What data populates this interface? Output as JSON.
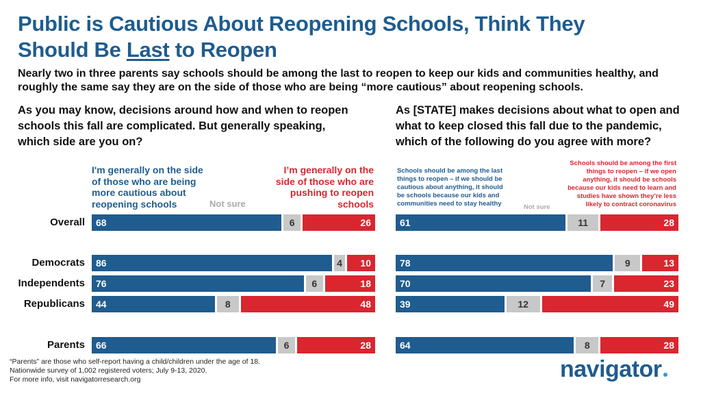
{
  "header": {
    "title_part1": "Public is Cautious About Reopening Schools, Think They",
    "title_part2": "Should Be ",
    "title_underlined": "Last",
    "title_part3": " to Reopen",
    "subtitle": "Nearly two in three parents say schools should be among the last to reopen to keep our kids and communities healthy, and roughly the same say they are on the side of those who are being “more cautious” about reopening schools."
  },
  "chart_data": [
    {
      "type": "bar",
      "stacked": true,
      "question": "As you may know, decisions around how and when to reopen schools this fall are complicated. But generally speaking, which side are you on?",
      "categories": [
        "Overall",
        "Democrats",
        "Independents",
        "Republicans",
        "Parents"
      ],
      "series": [
        {
          "name": "I'm generally on the side of those who are being more cautious about reopening schools",
          "color": "#1f5c8f",
          "values": [
            68,
            86,
            76,
            44,
            66
          ]
        },
        {
          "name": "Not sure",
          "color": "#c8c8c8",
          "values": [
            6,
            4,
            6,
            8,
            6
          ]
        },
        {
          "name": "I’m generally on the side of those who are pushing to reopen schools",
          "color": "#d9262f",
          "values": [
            26,
            10,
            18,
            48,
            28
          ]
        }
      ]
    },
    {
      "type": "bar",
      "stacked": true,
      "question": "As [STATE] makes decisions about what to open and what to keep closed this fall due to the pandemic, which of the following do you agree with more?",
      "categories": [
        "Overall",
        "Democrats",
        "Independents",
        "Republicans",
        "Parents"
      ],
      "series": [
        {
          "name": "Schools should be among the last things to reopen – if we should be cautious about anything, it should be schools because our kids and communities need to stay healthy",
          "color": "#1f5c8f",
          "values": [
            61,
            78,
            70,
            39,
            64
          ]
        },
        {
          "name": "Not sure",
          "color": "#c8c8c8",
          "values": [
            11,
            9,
            7,
            12,
            8
          ]
        },
        {
          "name": "Schools should be among the first things to reopen – if we open anything, it should be schools because our kids need to learn and studies have shown they’re less likely to contract coronavirus",
          "color": "#d9262f",
          "values": [
            28,
            13,
            23,
            49,
            28
          ]
        }
      ]
    }
  ],
  "footnote": {
    "line1": "“Parents” are those who self-report having a child/children under the age of 18.",
    "line2": "Nationwide survey of 1,002 registered voters; July 9-13, 2020.",
    "line3": "For more info, visit navigatorresearch.org"
  },
  "logo": {
    "text": "navigator"
  }
}
